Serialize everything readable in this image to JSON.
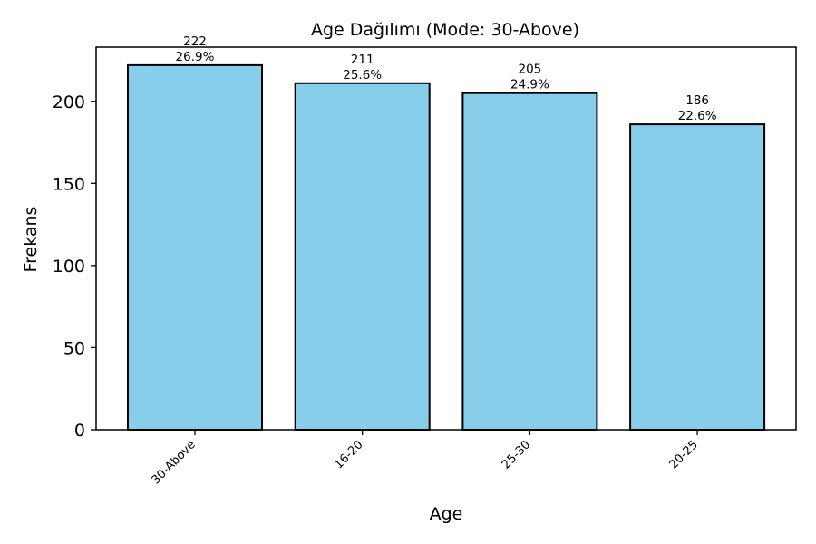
{
  "chart_data": {
    "type": "bar",
    "title": "Age Dağılımı (Mode: 30-Above)",
    "xlabel": "Age",
    "ylabel": "Frekans",
    "categories": [
      "30-Above",
      "16-20",
      "25-30",
      "20-25"
    ],
    "values": [
      222,
      211,
      205,
      186
    ],
    "percent_labels": [
      "26.9%",
      "25.6%",
      "24.9%",
      "22.6%"
    ],
    "ylim": [
      0,
      233
    ],
    "yticks": [
      0,
      50,
      100,
      150,
      200
    ],
    "grid": false,
    "legend": "none",
    "colors": {
      "bar": "#87CEEB",
      "edge": "#000000"
    }
  }
}
